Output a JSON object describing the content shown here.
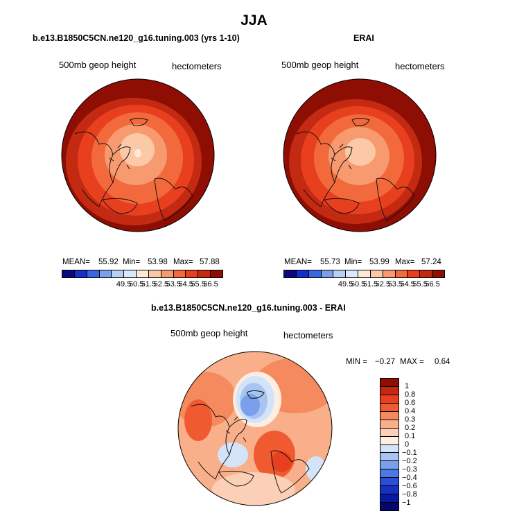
{
  "title": "JJA",
  "chart_data": [
    {
      "type": "heatmap",
      "projection": "polar-stereographic north",
      "title": "b.e13.B1850C5CN.ne120_g16.tuning.003 (yrs 1-10)",
      "variable_label": "500mb geop height",
      "units": "hectometers",
      "stats": {
        "mean_label": "MEAN=",
        "mean": "55.92",
        "min_label": "Min=",
        "min": "53.98",
        "max_label": "Max=",
        "max": "57.88"
      },
      "colorbar_levels": [
        "49.5",
        "50.5",
        "51.5",
        "52.5",
        "53.5",
        "54.5",
        "55.5",
        "56.5"
      ],
      "colorbar_colors": [
        "#0a0a7c",
        "#1430c8",
        "#3a66e0",
        "#7aa0ec",
        "#b8cff5",
        "#dce8fa",
        "#fde9da",
        "#fbc9a6",
        "#f79a70",
        "#f26a3c",
        "#e8401e",
        "#c42a12",
        "#8e0e04"
      ]
    },
    {
      "type": "heatmap",
      "projection": "polar-stereographic north",
      "title": "ERAI",
      "variable_label": "500mb geop height",
      "units": "hectometers",
      "stats": {
        "mean_label": "MEAN=",
        "mean": "55.73",
        "min_label": "Min=",
        "min": "53.99",
        "max_label": "Max=",
        "max": "57.24"
      },
      "colorbar_levels": [
        "49.5",
        "50.5",
        "51.5",
        "52.5",
        "53.5",
        "54.5",
        "55.5",
        "56.5"
      ],
      "colorbar_colors": [
        "#0a0a7c",
        "#1430c8",
        "#3a66e0",
        "#7aa0ec",
        "#b8cff5",
        "#dce8fa",
        "#fde9da",
        "#fbc9a6",
        "#f79a70",
        "#f26a3c",
        "#e8401e",
        "#c42a12",
        "#8e0e04"
      ]
    },
    {
      "type": "heatmap",
      "projection": "polar-stereographic north",
      "title": "b.e13.B1850C5CN.ne120_g16.tuning.003 - ERAI",
      "variable_label": "500mb geop height",
      "units": "hectometers",
      "stats": {
        "min_label": "MIN =",
        "min": "−0.27",
        "max_label": "MAX =",
        "max": "0.64"
      },
      "colorbar_levels": [
        "1",
        "0.8",
        "0.6",
        "0.4",
        "0.3",
        "0.2",
        "0.1",
        "0",
        "−0.1",
        "−0.2",
        "−0.3",
        "−0.4",
        "−0.6",
        "−0.8",
        "−1"
      ],
      "colorbar_colors": [
        "#8e0e04",
        "#c42a12",
        "#e8401e",
        "#f05a30",
        "#f58a5e",
        "#f9b08a",
        "#fcd0b6",
        "#fdeee2",
        "#d4e4f8",
        "#a8c4f2",
        "#7aa0ec",
        "#4a78e4",
        "#2a4ed6",
        "#1630c0",
        "#0a1aa0",
        "#06066e"
      ]
    }
  ]
}
